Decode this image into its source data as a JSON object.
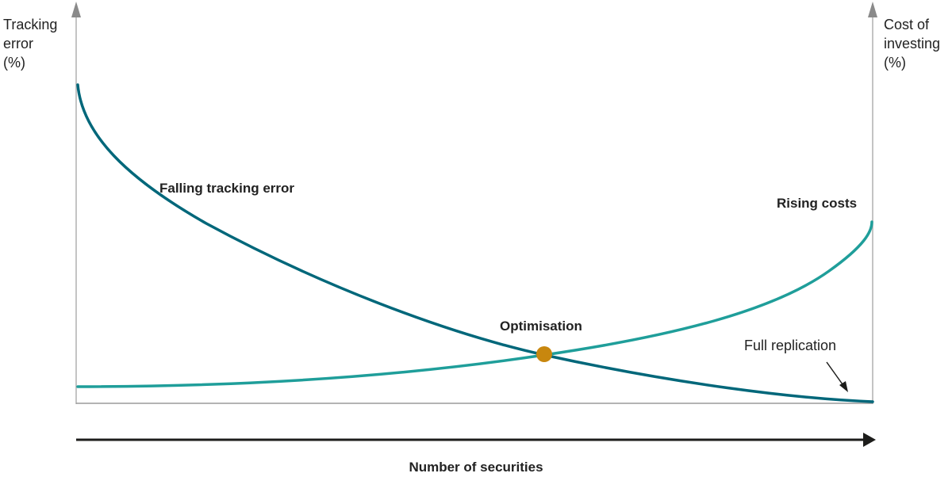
{
  "left_axis_label": [
    "Tracking",
    "error",
    "(%)"
  ],
  "right_axis_label": [
    "Cost of",
    "investing",
    "(%)"
  ],
  "x_axis_label": "Number of securities",
  "annotations": {
    "falling": "Falling tracking error",
    "rising": "Rising costs",
    "optimisation": "Optimisation",
    "full_replication": "Full replication"
  },
  "colors": {
    "tracking_error": "#00677a",
    "costs": "#1f9e9a",
    "optimisation_point": "#c8870e",
    "axis": "#b0b0b0",
    "arrow": "#1d1d1b"
  }
}
